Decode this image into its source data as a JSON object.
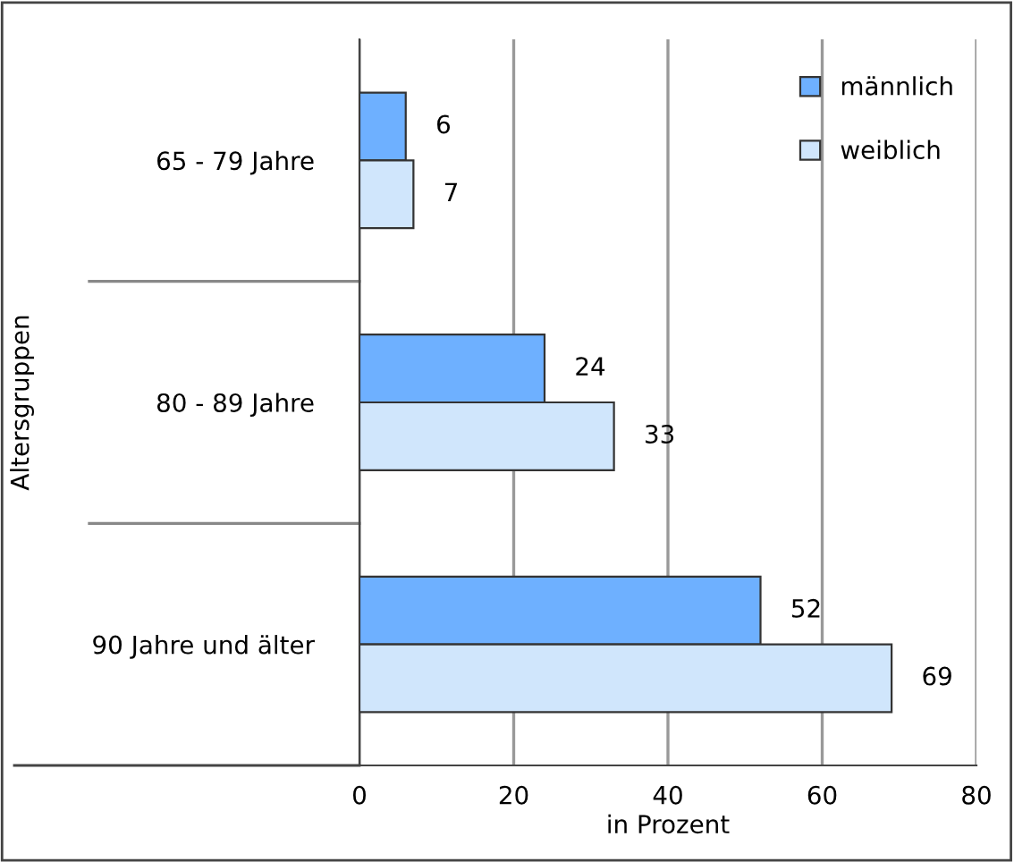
{
  "chart_data": {
    "type": "bar",
    "orientation": "horizontal",
    "xlabel": "in Prozent",
    "ylabel": "Altersgruppen",
    "categories": [
      "65 - 79 Jahre",
      "80 - 89 Jahre",
      "90 Jahre und älter"
    ],
    "series": [
      {
        "name": "männlich",
        "color": "#6eb0ff",
        "values": [
          6,
          24,
          52
        ]
      },
      {
        "name": "weiblich",
        "color": "#d0e6fc",
        "values": [
          7,
          33,
          69
        ]
      }
    ],
    "xlim": [
      0,
      80
    ],
    "xticks": [
      0,
      20,
      40,
      60,
      80
    ],
    "grid": "x",
    "legend": "top right",
    "data_labels": true
  }
}
